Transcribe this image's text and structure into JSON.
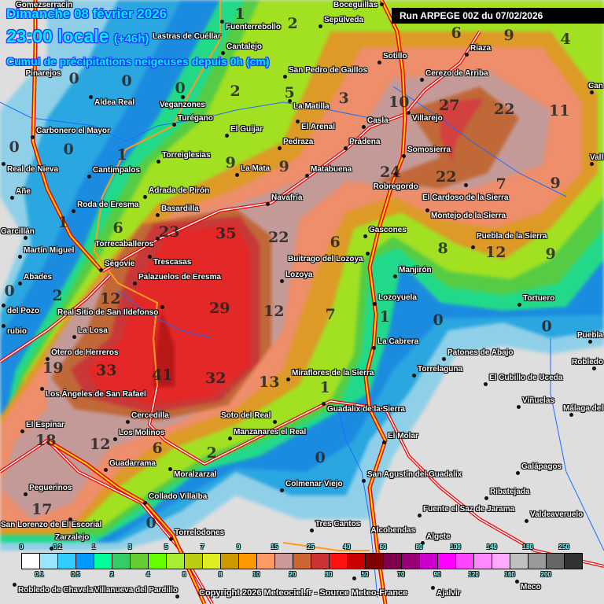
{
  "header": {
    "date": "Dimanche 08 février 2026",
    "time": "23:00 locale",
    "lead": "(+46h)",
    "product": "Cumul de précipitations neigeuses depuis 0h (cm)",
    "run": "Run ARPEGE 00Z du 07/02/2026"
  },
  "legend": {
    "colors": [
      "#ffffff",
      "#99e5ff",
      "#33ccff",
      "#0099ff",
      "#00ff99",
      "#33cc66",
      "#66cc33",
      "#66ff00",
      "#aaee33",
      "#bbcc11",
      "#ddee22",
      "#cc9900",
      "#ff9900",
      "#ff9966",
      "#cc9999",
      "#cc6633",
      "#cc3333",
      "#ff1111",
      "#cc0000",
      "#800000",
      "#800050",
      "#990077",
      "#cc00cc",
      "#ff00ff",
      "#ff44ff",
      "#ff88ff",
      "#ffaaff",
      "#c0c0c0",
      "#999999",
      "#666666",
      "#333333"
    ],
    "top_labels": [
      "0",
      "0.2",
      "1",
      "3",
      "5",
      "7",
      "9",
      "15",
      "25",
      "40",
      "60",
      "80",
      "100",
      "140",
      "180",
      "250"
    ],
    "bottom_labels": [
      "0.1",
      "0.5",
      "2",
      "4",
      "6",
      "8",
      "10",
      "20",
      "30",
      "50",
      "70",
      "90",
      "120",
      "160",
      "200"
    ]
  },
  "cities": [
    "Gomezserracin",
    "Lastras de Cuéllar",
    "Fuenterrebollo",
    "Sepúlveda",
    "Boceguillas",
    "Cantalejo",
    "Riaza",
    "Sotillo",
    "San Pedro de Gaillos",
    "Cerezo de Arriba",
    "Aldea Real",
    "Veganzones",
    "La Matilla",
    "Villarejo",
    "Turégano",
    "El Arenal",
    "Casla",
    "Carbonero el Mayor",
    "El Guijar",
    "Pedraza",
    "Prádena",
    "Somosierra",
    "Torreiglesias",
    "Real de Nieva",
    "Cantimpalos",
    "La Mata",
    "Matabuena",
    "Robregordo",
    "El Cardoso de la Sierra",
    "Añe",
    "Adrada de Pirón",
    "Navafría",
    "Montejo de la Sierra",
    "Roda de Eresma",
    "Basardilla",
    "Gascones",
    "Garcillán",
    "Torrecaballeros",
    "Buitrago del Lozoya",
    "Puebla de la Sierra",
    "Martín Miguel",
    "Trescasas",
    "Ségovie",
    "Manjirón",
    "Lozoya",
    "Palazuelos de Eresma",
    "Abades",
    "del Pozo",
    "Real Sitio de San Ildefonso",
    "Lozoyuela",
    "Tortuero",
    "rubio",
    "La Losa",
    "La Cabrera",
    "Patones de Abajo",
    "Otero de Herreros",
    "Torrelaguna",
    "Miraflores de la Sierra",
    "El Cubillo de Uceda",
    "Los Ángeles de San Rafael",
    "Guadalix de la Sierra",
    "Viñuelas",
    "Robledo",
    "Málaga del",
    "Cercedilla",
    "Soto del Real",
    "El Espinar",
    "El Molar",
    "Los Molinos",
    "Manzanares el Real",
    "Guadarrama",
    "Moralzarzal",
    "San Agustín del Guadalix",
    "Colmenar Viejo",
    "Galápagos",
    "Peguerinos",
    "Collado Villalba",
    "Ribatejada",
    "Valdeaveruelo",
    "San Lorenzo de El Escorial",
    "Fuente el Saz de Jarama",
    "Tres Cantos",
    "Torrelodones",
    "Algete",
    "Alcobendas",
    "Ajalvir",
    "Meco",
    "Robledo de Chavela",
    "Zarzalejo",
    "Villanueva del Pardillo",
    "Pinarejos",
    "Vall",
    "Can",
    "Puebla"
  ],
  "values": [
    "1",
    "2",
    "6",
    "9",
    "4",
    "0",
    "0",
    "0",
    "2",
    "5",
    "3",
    "10",
    "27",
    "22",
    "11",
    "0",
    "0",
    "1",
    "9",
    "9",
    "24",
    "22",
    "7",
    "9",
    "1",
    "6",
    "23",
    "35",
    "22",
    "6",
    "8",
    "12",
    "9",
    "2",
    "12",
    "29",
    "12",
    "7",
    "1",
    "0",
    "0",
    "19",
    "33",
    "41",
    "32",
    "13",
    "1",
    "18",
    "12",
    "6",
    "2",
    "0",
    "17",
    "0",
    "0"
  ],
  "copyright": "Copyright 2026 Meteociel.fr - Source Meteo-France"
}
